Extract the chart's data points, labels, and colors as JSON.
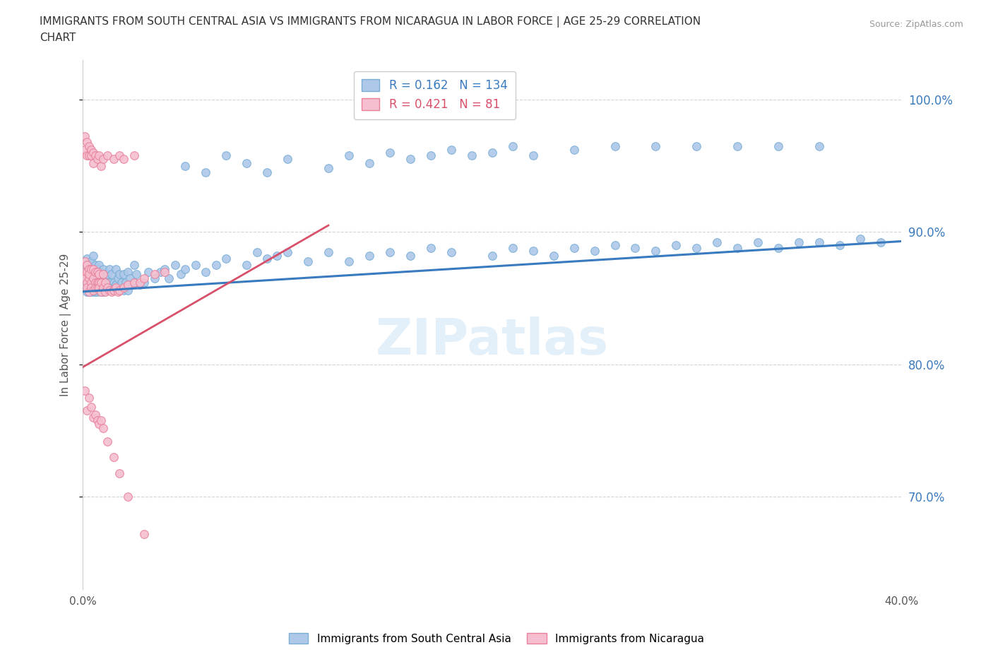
{
  "title_line1": "IMMIGRANTS FROM SOUTH CENTRAL ASIA VS IMMIGRANTS FROM NICARAGUA IN LABOR FORCE | AGE 25-29 CORRELATION",
  "title_line2": "CHART",
  "source": "Source: ZipAtlas.com",
  "ylabel": "In Labor Force | Age 25-29",
  "xlim": [
    0.0,
    0.4
  ],
  "ylim": [
    0.63,
    1.03
  ],
  "yticks": [
    0.7,
    0.8,
    0.9,
    1.0
  ],
  "ytick_labels": [
    "70.0%",
    "80.0%",
    "90.0%",
    "100.0%"
  ],
  "xticks": [
    0.0,
    0.05,
    0.1,
    0.15,
    0.2,
    0.25,
    0.3,
    0.35,
    0.4
  ],
  "blue_color": "#adc8e8",
  "blue_edge_color": "#7aaed6",
  "pink_color": "#f5bfcf",
  "pink_edge_color": "#e8809a",
  "trend_blue_color": "#3a7bbf",
  "trend_pink_color": "#d9506a",
  "R_blue": 0.162,
  "N_blue": 134,
  "R_pink": 0.421,
  "N_pink": 81,
  "legend_label_blue": "Immigrants from South Central Asia",
  "legend_label_pink": "Immigrants from Nicaragua",
  "watermark": "ZIPatlas",
  "scatter_size": 70,
  "blue_x": [
    0.001,
    0.001,
    0.002,
    0.002,
    0.002,
    0.002,
    0.003,
    0.003,
    0.003,
    0.003,
    0.004,
    0.004,
    0.004,
    0.004,
    0.005,
    0.005,
    0.005,
    0.005,
    0.005,
    0.006,
    0.006,
    0.006,
    0.006,
    0.007,
    0.007,
    0.007,
    0.007,
    0.007,
    0.008,
    0.008,
    0.008,
    0.009,
    0.009,
    0.009,
    0.01,
    0.01,
    0.01,
    0.011,
    0.011,
    0.012,
    0.012,
    0.013,
    0.013,
    0.014,
    0.014,
    0.015,
    0.015,
    0.016,
    0.016,
    0.017,
    0.018,
    0.018,
    0.019,
    0.02,
    0.02,
    0.021,
    0.022,
    0.022,
    0.023,
    0.024,
    0.025,
    0.025,
    0.026,
    0.028,
    0.03,
    0.032,
    0.035,
    0.038,
    0.04,
    0.042,
    0.045,
    0.048,
    0.05,
    0.055,
    0.06,
    0.065,
    0.07,
    0.08,
    0.085,
    0.09,
    0.095,
    0.1,
    0.11,
    0.12,
    0.13,
    0.14,
    0.15,
    0.16,
    0.17,
    0.18,
    0.2,
    0.21,
    0.22,
    0.23,
    0.24,
    0.25,
    0.26,
    0.27,
    0.28,
    0.29,
    0.3,
    0.31,
    0.32,
    0.33,
    0.34,
    0.35,
    0.36,
    0.37,
    0.38,
    0.39,
    0.05,
    0.06,
    0.07,
    0.08,
    0.09,
    0.1,
    0.12,
    0.13,
    0.14,
    0.15,
    0.16,
    0.17,
    0.18,
    0.19,
    0.2,
    0.21,
    0.22,
    0.24,
    0.26,
    0.28,
    0.3,
    0.32,
    0.34,
    0.36
  ],
  "blue_y": [
    0.87,
    0.86,
    0.875,
    0.865,
    0.855,
    0.88,
    0.87,
    0.86,
    0.875,
    0.855,
    0.868,
    0.878,
    0.855,
    0.865,
    0.872,
    0.86,
    0.882,
    0.855,
    0.868,
    0.865,
    0.875,
    0.855,
    0.87,
    0.862,
    0.872,
    0.855,
    0.865,
    0.858,
    0.868,
    0.856,
    0.875,
    0.86,
    0.87,
    0.855,
    0.86,
    0.872,
    0.855,
    0.865,
    0.858,
    0.868,
    0.856,
    0.862,
    0.872,
    0.856,
    0.868,
    0.862,
    0.858,
    0.86,
    0.872,
    0.865,
    0.858,
    0.868,
    0.862,
    0.868,
    0.856,
    0.862,
    0.87,
    0.856,
    0.865,
    0.86,
    0.862,
    0.875,
    0.868,
    0.86,
    0.862,
    0.87,
    0.865,
    0.87,
    0.872,
    0.865,
    0.875,
    0.868,
    0.872,
    0.875,
    0.87,
    0.875,
    0.88,
    0.875,
    0.885,
    0.88,
    0.882,
    0.885,
    0.878,
    0.885,
    0.878,
    0.882,
    0.885,
    0.882,
    0.888,
    0.885,
    0.882,
    0.888,
    0.886,
    0.882,
    0.888,
    0.886,
    0.89,
    0.888,
    0.886,
    0.89,
    0.888,
    0.892,
    0.888,
    0.892,
    0.888,
    0.892,
    0.892,
    0.89,
    0.895,
    0.892,
    0.95,
    0.945,
    0.958,
    0.952,
    0.945,
    0.955,
    0.948,
    0.958,
    0.952,
    0.96,
    0.955,
    0.958,
    0.962,
    0.958,
    0.96,
    0.965,
    0.958,
    0.962,
    0.965,
    0.965,
    0.965,
    0.965,
    0.965,
    0.965
  ],
  "pink_x": [
    0.001,
    0.001,
    0.001,
    0.002,
    0.002,
    0.002,
    0.002,
    0.003,
    0.003,
    0.003,
    0.003,
    0.004,
    0.004,
    0.004,
    0.005,
    0.005,
    0.005,
    0.006,
    0.006,
    0.006,
    0.007,
    0.007,
    0.007,
    0.008,
    0.008,
    0.008,
    0.009,
    0.009,
    0.01,
    0.01,
    0.011,
    0.011,
    0.012,
    0.013,
    0.014,
    0.015,
    0.016,
    0.017,
    0.018,
    0.02,
    0.022,
    0.025,
    0.028,
    0.03,
    0.035,
    0.04,
    0.001,
    0.001,
    0.002,
    0.002,
    0.003,
    0.003,
    0.004,
    0.004,
    0.005,
    0.005,
    0.006,
    0.007,
    0.008,
    0.009,
    0.01,
    0.012,
    0.015,
    0.018,
    0.02,
    0.025,
    0.001,
    0.002,
    0.003,
    0.004,
    0.005,
    0.006,
    0.007,
    0.008,
    0.009,
    0.01,
    0.012,
    0.015,
    0.018,
    0.022,
    0.03
  ],
  "pink_y": [
    0.87,
    0.865,
    0.878,
    0.862,
    0.87,
    0.858,
    0.875,
    0.865,
    0.872,
    0.855,
    0.868,
    0.862,
    0.872,
    0.858,
    0.865,
    0.872,
    0.856,
    0.862,
    0.87,
    0.858,
    0.862,
    0.87,
    0.858,
    0.862,
    0.858,
    0.868,
    0.855,
    0.862,
    0.858,
    0.868,
    0.855,
    0.862,
    0.858,
    0.856,
    0.855,
    0.856,
    0.858,
    0.855,
    0.856,
    0.858,
    0.86,
    0.862,
    0.862,
    0.865,
    0.868,
    0.87,
    0.972,
    0.962,
    0.968,
    0.958,
    0.965,
    0.958,
    0.962,
    0.958,
    0.96,
    0.952,
    0.958,
    0.955,
    0.958,
    0.95,
    0.955,
    0.958,
    0.955,
    0.958,
    0.955,
    0.958,
    0.78,
    0.765,
    0.775,
    0.768,
    0.76,
    0.762,
    0.758,
    0.755,
    0.758,
    0.752,
    0.742,
    0.73,
    0.718,
    0.7,
    0.672
  ],
  "trend_blue_x0": 0.0,
  "trend_blue_x1": 0.4,
  "trend_blue_y0": 0.855,
  "trend_blue_y1": 0.893,
  "trend_pink_x0": 0.0,
  "trend_pink_x1": 0.12,
  "trend_pink_y0": 0.798,
  "trend_pink_y1": 0.905
}
